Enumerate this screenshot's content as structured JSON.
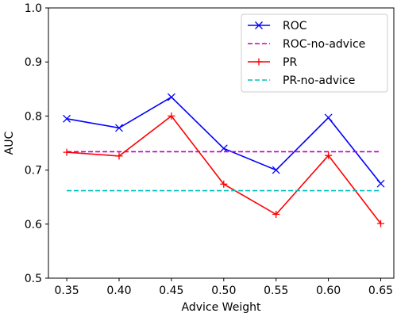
{
  "chart_data": {
    "type": "line",
    "x": [
      0.35,
      0.4,
      0.45,
      0.5,
      0.55,
      0.6,
      0.65
    ],
    "xticks": [
      "0.35",
      "0.40",
      "0.45",
      "0.50",
      "0.55",
      "0.60",
      "0.65"
    ],
    "yticks": [
      "0.5",
      "0.6",
      "0.7",
      "0.8",
      "0.9",
      "1.0"
    ],
    "xlabel": "Advice Weight",
    "ylabel": "AUC",
    "xlim": [
      0.3325,
      0.6625
    ],
    "ylim": [
      0.5,
      1.0
    ],
    "grid": false,
    "legend_position": "top-right",
    "series": [
      {
        "name": "ROC",
        "color": "#0000ff",
        "style": "solid",
        "marker": "x",
        "values": [
          0.795,
          0.778,
          0.835,
          0.74,
          0.7,
          0.797,
          0.675
        ]
      },
      {
        "name": "ROC-no-advice",
        "color": "#bf00bf",
        "style": "dashed",
        "marker": "none",
        "values": [
          0.734,
          0.734,
          0.734,
          0.734,
          0.734,
          0.734,
          0.734
        ]
      },
      {
        "name": "PR",
        "color": "#ff0000",
        "style": "solid",
        "marker": "plus",
        "values": [
          0.733,
          0.726,
          0.8,
          0.674,
          0.618,
          0.727,
          0.601
        ]
      },
      {
        "name": "PR-no-advice",
        "color": "#00bfbf",
        "style": "dashed",
        "marker": "none",
        "values": [
          0.662,
          0.662,
          0.662,
          0.662,
          0.662,
          0.662,
          0.662
        ]
      }
    ]
  }
}
